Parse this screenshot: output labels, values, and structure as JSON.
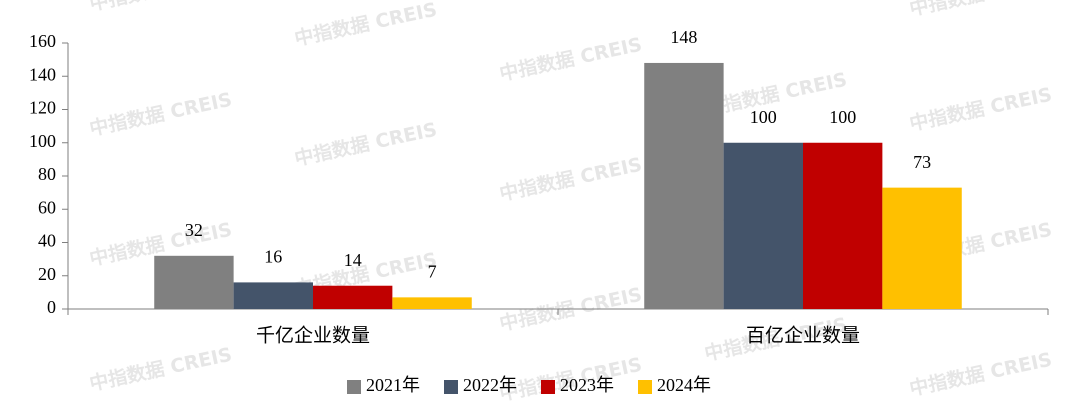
{
  "chart_data": {
    "type": "bar",
    "watermark": "中指数据 CREIS",
    "categories": [
      "千亿企业数量",
      "百亿企业数量"
    ],
    "series": [
      {
        "name": "2021年",
        "color": "#808080",
        "values": [
          32,
          148
        ]
      },
      {
        "name": "2022年",
        "color": "#44546a",
        "values": [
          16,
          100
        ]
      },
      {
        "name": "2023年",
        "color": "#c00000",
        "values": [
          14,
          100
        ]
      },
      {
        "name": "2024年",
        "color": "#ffc000",
        "values": [
          7,
          73
        ]
      }
    ],
    "ylim": [
      0,
      160
    ],
    "yticks": [
      0,
      20,
      40,
      60,
      80,
      100,
      120,
      140,
      160
    ],
    "legend": "bottom",
    "grid": false
  }
}
